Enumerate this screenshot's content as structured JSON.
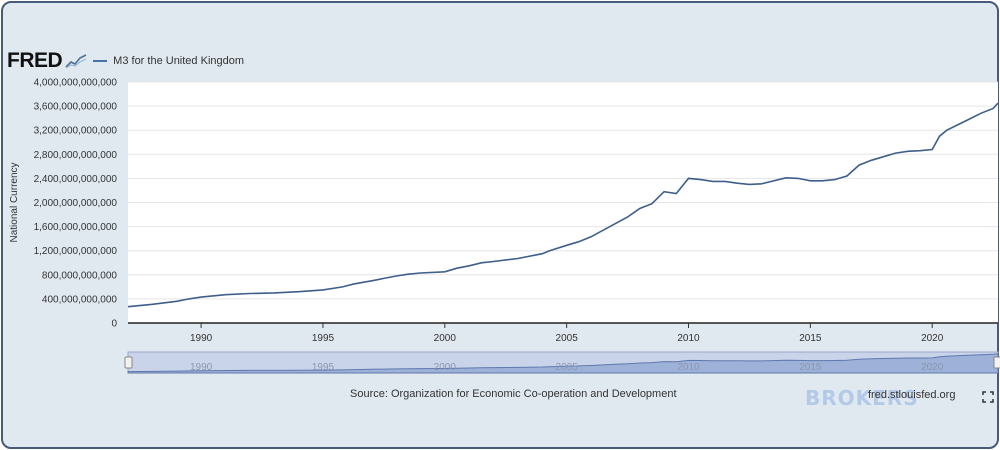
{
  "header": {
    "logo_text": "FRED",
    "series_label": "M3 for the United Kingdom"
  },
  "footer": {
    "source": "Source: Organization for Economic Co-operation and Development",
    "site": "fred.stlouisfed.org",
    "watermark": "BROKERS"
  },
  "colors": {
    "line": "#3e5f8a",
    "plot_bg": "#ffffff",
    "frame_bg": "#e1e9f0",
    "navigator_fill": "#9eb1d8"
  },
  "chart_data": {
    "type": "line",
    "ylabel": "National Currency",
    "xlabel": "",
    "ylim": [
      0,
      4000000000000
    ],
    "xlim": [
      1987.0,
      2022.7
    ],
    "y_ticks": [
      0,
      400000000000,
      800000000000,
      1200000000000,
      1600000000000,
      2000000000000,
      2400000000000,
      2800000000000,
      3200000000000,
      3600000000000,
      4000000000000
    ],
    "y_tick_labels": [
      "0",
      "400,000,000,000",
      "800,000,000,000",
      "1,200,000,000,000",
      "1,600,000,000,000",
      "2,000,000,000,000",
      "2,400,000,000,000",
      "2,800,000,000,000",
      "3,200,000,000,000",
      "3,600,000,000,000",
      "4,000,000,000,000"
    ],
    "x_ticks": [
      1990,
      1995,
      2000,
      2005,
      2010,
      2015,
      2020
    ],
    "x_tick_labels": [
      "1990",
      "1995",
      "2000",
      "2005",
      "2010",
      "2015",
      "2020"
    ],
    "grid": "horizontal",
    "series": [
      {
        "x": [
          1987.0,
          1988.0,
          1989.0,
          1989.5,
          1990.0,
          1991.0,
          1992.0,
          1993.0,
          1994.0,
          1995.0,
          1995.8,
          1996.3,
          1997.0,
          1997.5,
          1998.0,
          1998.5,
          1999.0,
          2000.0,
          2000.5,
          2001.0,
          2001.5,
          2002.0,
          2003.0,
          2004.0,
          2004.3,
          2005.0,
          2005.5,
          2006.0,
          2007.0,
          2007.5,
          2008.0,
          2008.5,
          2009.0,
          2009.5,
          2010.0,
          2010.5,
          2011.0,
          2011.5,
          2012.0,
          2012.5,
          2013.0,
          2014.0,
          2014.5,
          2015.0,
          2015.5,
          2016.0,
          2016.5,
          2017.0,
          2017.5,
          2018.0,
          2018.5,
          2019.0,
          2019.5,
          2020.0,
          2020.3,
          2020.6,
          2021.0,
          2021.5,
          2022.0,
          2022.5,
          2022.7
        ],
        "y": [
          270000000000,
          310000000000,
          360000000000,
          400000000000,
          430000000000,
          470000000000,
          490000000000,
          500000000000,
          520000000000,
          550000000000,
          600000000000,
          650000000000,
          700000000000,
          740000000000,
          780000000000,
          810000000000,
          830000000000,
          850000000000,
          910000000000,
          950000000000,
          1000000000000,
          1020000000000,
          1070000000000,
          1150000000000,
          1200000000000,
          1290000000000,
          1350000000000,
          1430000000000,
          1650000000000,
          1760000000000,
          1900000000000,
          1980000000000,
          2180000000000,
          2150000000000,
          2400000000000,
          2380000000000,
          2350000000000,
          2350000000000,
          2320000000000,
          2300000000000,
          2310000000000,
          2410000000000,
          2400000000000,
          2360000000000,
          2360000000000,
          2380000000000,
          2440000000000,
          2620000000000,
          2700000000000,
          2760000000000,
          2820000000000,
          2850000000000,
          2860000000000,
          2880000000000,
          3100000000000,
          3200000000000,
          3280000000000,
          3380000000000,
          3480000000000,
          3560000000000,
          3650000000000
        ]
      }
    ],
    "navigator_ticks": [
      "1990",
      "1995",
      "2000",
      "2005",
      "2010",
      "2015",
      "2020"
    ]
  }
}
